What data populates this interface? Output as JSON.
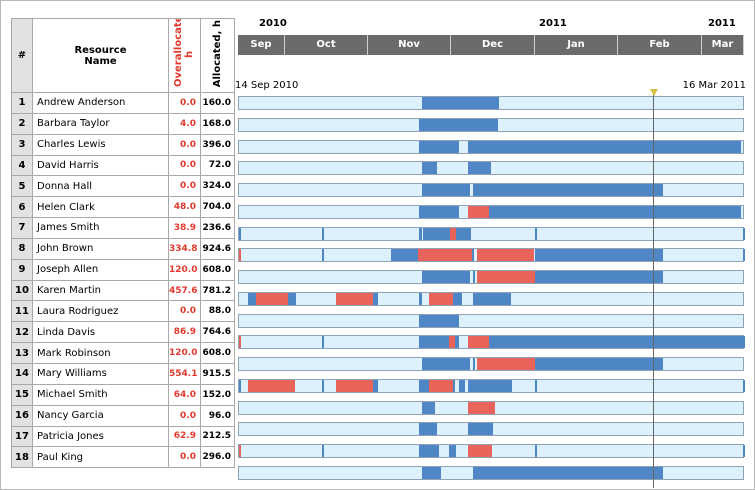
{
  "grid": {
    "headers": {
      "number": "#",
      "name": "Resource Name",
      "overallocated": "Overallocated, h",
      "allocated": "Allocated, h"
    },
    "resources": [
      {
        "id": "1",
        "name": "Andrew Anderson",
        "over": "0.0",
        "alloc": "160.0"
      },
      {
        "id": "2",
        "name": "Barbara Taylor",
        "over": "4.0",
        "alloc": "168.0"
      },
      {
        "id": "3",
        "name": "Charles Lewis",
        "over": "0.0",
        "alloc": "396.0"
      },
      {
        "id": "4",
        "name": "David Harris",
        "over": "0.0",
        "alloc": "72.0"
      },
      {
        "id": "5",
        "name": "Donna Hall",
        "over": "0.0",
        "alloc": "324.0"
      },
      {
        "id": "6",
        "name": "Helen Clark",
        "over": "48.0",
        "alloc": "704.0"
      },
      {
        "id": "7",
        "name": "James Smith",
        "over": "38.9",
        "alloc": "236.6"
      },
      {
        "id": "8",
        "name": "John Brown",
        "over": "334.8",
        "alloc": "924.6"
      },
      {
        "id": "9",
        "name": "Joseph Allen",
        "over": "120.0",
        "alloc": "608.0"
      },
      {
        "id": "10",
        "name": "Karen Martin",
        "over": "457.6",
        "alloc": "781.2"
      },
      {
        "id": "11",
        "name": "Laura Rodriguez",
        "over": "0.0",
        "alloc": "88.0"
      },
      {
        "id": "12",
        "name": "Linda Davis",
        "over": "86.9",
        "alloc": "764.6"
      },
      {
        "id": "13",
        "name": "Mark Robinson",
        "over": "120.0",
        "alloc": "608.0"
      },
      {
        "id": "14",
        "name": "Mary Williams",
        "over": "554.1",
        "alloc": "915.5"
      },
      {
        "id": "15",
        "name": "Michael Smith",
        "over": "64.0",
        "alloc": "152.0"
      },
      {
        "id": "16",
        "name": "Nancy Garcia",
        "over": "0.0",
        "alloc": "96.0"
      },
      {
        "id": "17",
        "name": "Patricia Jones",
        "over": "62.9",
        "alloc": "212.5"
      },
      {
        "id": "18",
        "name": "Paul King",
        "over": "0.0",
        "alloc": "296.0"
      }
    ]
  },
  "timeline": {
    "years": {
      "start": "2010",
      "mid": "2011",
      "end": "2011"
    },
    "months": [
      "Sep",
      "Oct",
      "Nov",
      "Dec",
      "Jan",
      "Feb",
      "Mar"
    ],
    "range_start": "14 Sep 2010",
    "range_end": "16 Mar 2011"
  },
  "colors": {
    "allocated": "#4f86c5",
    "overallocated": "#e8645a",
    "available": "#ddf1fc",
    "today_marker": "#d8bf3f"
  }
}
